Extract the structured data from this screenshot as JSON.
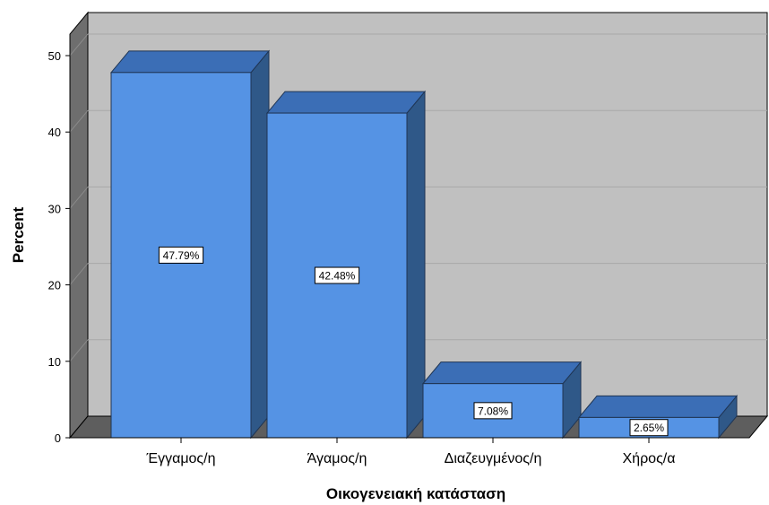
{
  "chart_data": {
    "type": "bar",
    "categories": [
      "Έγγαμος/η",
      "Άγαμος/η",
      "Διαζευγμένος/η",
      "Χήρος/α"
    ],
    "values": [
      47.79,
      42.48,
      7.08,
      2.65
    ],
    "data_labels": [
      "47.79%",
      "42.48%",
      "7.08%",
      "2.65%"
    ],
    "xlabel": "Οικογενειακή κατάσταση",
    "ylabel": "Percent",
    "ylim": [
      0,
      50
    ],
    "yticks": [
      0,
      10,
      20,
      30,
      40,
      50
    ],
    "grid": true,
    "legend": "none"
  },
  "colors": {
    "bar_front": "#5593e4",
    "bar_top": "#3b6eb6",
    "bar_side": "#2f5888",
    "plot_back": "#c0c0c0",
    "plot_wall": "#6e6e6e",
    "plot_floor": "#5e5e5e"
  }
}
